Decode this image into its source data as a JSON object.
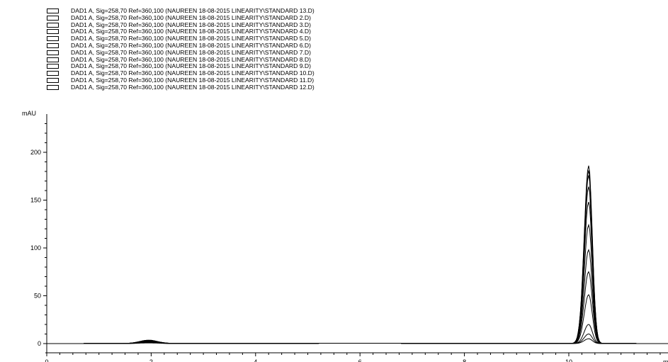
{
  "legend": [
    {
      "label": "DAD1 A, Sig=258,70 Ref=360,100 (NAUREEN 18-08-2015 LINEARITY\\STANDARD 13.D)"
    },
    {
      "label": "DAD1 A, Sig=258,70 Ref=360,100 (NAUREEN 18-08-2015 LINEARITY\\STANDARD 2.D)"
    },
    {
      "label": "DAD1 A, Sig=258,70 Ref=360,100 (NAUREEN 18-08-2015 LINEARITY\\STANDARD 3.D)"
    },
    {
      "label": "DAD1 A, Sig=258,70 Ref=360,100 (NAUREEN 18-08-2015 LINEARITY\\STANDARD 4.D)"
    },
    {
      "label": "DAD1 A, Sig=258,70 Ref=360,100 (NAUREEN 18-08-2015 LINEARITY\\STANDARD 5.D)"
    },
    {
      "label": "DAD1 A, Sig=258,70 Ref=360,100 (NAUREEN 18-08-2015 LINEARITY\\STANDARD 6.D)"
    },
    {
      "label": "DAD1 A, Sig=258,70 Ref=360,100 (NAUREEN 18-08-2015 LINEARITY\\STANDARD 7.D)"
    },
    {
      "label": "DAD1 A, Sig=258,70 Ref=360,100 (NAUREEN 18-08-2015 LINEARITY\\STANDARD 8.D)"
    },
    {
      "label": "DAD1 A, Sig=258,70 Ref=360,100 (NAUREEN 18-08-2015 LINEARITY\\STANDARD 9.D)"
    },
    {
      "label": "DAD1 A, Sig=258,70 Ref=360,100 (NAUREEN 18-08-2015 LINEARITY\\STANDARD 10.D)"
    },
    {
      "label": "DAD1 A, Sig=258,70 Ref=360,100 (NAUREEN 18-08-2015 LINEARITY\\STANDARD 11.D)"
    },
    {
      "label": "DAD1 A, Sig=258,70 Ref=360,100 (NAUREEN 18-08-2015 LINEARITY\\STANDARD 12.D)"
    }
  ],
  "chart_data": {
    "type": "line",
    "ylabel": "mAU",
    "xlabel": "m",
    "xlim": [
      0,
      11.9
    ],
    "ylim": [
      -5,
      240
    ],
    "x_ticks": [
      0,
      2,
      4,
      6,
      8,
      10
    ],
    "y_ticks": [
      0,
      50,
      100,
      150,
      200
    ],
    "grid": false,
    "legend_position": "top-left",
    "line_color": "#000000",
    "peak_retention_time": 10.38,
    "minor_peak_retention_time": 1.95,
    "series": [
      {
        "peak_height": 186,
        "minor_peak_height": 3.0
      },
      {
        "peak_height": 5,
        "minor_peak_height": 0.6
      },
      {
        "peak_height": 10,
        "minor_peak_height": 1.0
      },
      {
        "peak_height": 20,
        "minor_peak_height": 1.3
      },
      {
        "peak_height": 51,
        "minor_peak_height": 1.8
      },
      {
        "peak_height": 75,
        "minor_peak_height": 2.0
      },
      {
        "peak_height": 98,
        "minor_peak_height": 2.3
      },
      {
        "peak_height": 124,
        "minor_peak_height": 2.6
      },
      {
        "peak_height": 148,
        "minor_peak_height": 2.8
      },
      {
        "peak_height": 164,
        "minor_peak_height": 3.1
      },
      {
        "peak_height": 176,
        "minor_peak_height": 3.3
      },
      {
        "peak_height": 181,
        "minor_peak_height": 3.5
      }
    ]
  }
}
